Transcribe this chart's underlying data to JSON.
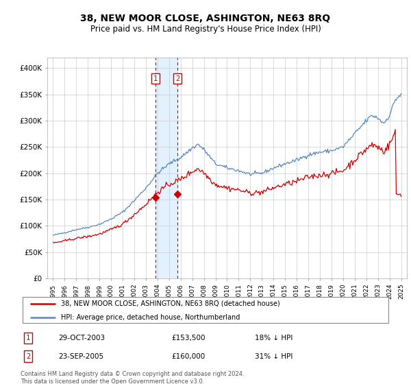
{
  "title": "38, NEW MOOR CLOSE, ASHINGTON, NE63 8RQ",
  "subtitle": "Price paid vs. HM Land Registry's House Price Index (HPI)",
  "legend_label_red": "38, NEW MOOR CLOSE, ASHINGTON, NE63 8RQ (detached house)",
  "legend_label_blue": "HPI: Average price, detached house, Northumberland",
  "transaction1_label": "1",
  "transaction1_date": "29-OCT-2003",
  "transaction1_price": "£153,500",
  "transaction1_hpi": "18% ↓ HPI",
  "transaction1_year": 2003.83,
  "transaction1_value": 153500,
  "transaction2_label": "2",
  "transaction2_date": "23-SEP-2005",
  "transaction2_price": "£160,000",
  "transaction2_hpi": "31% ↓ HPI",
  "transaction2_year": 2005.72,
  "transaction2_value": 160000,
  "footer": "Contains HM Land Registry data © Crown copyright and database right 2024.\nThis data is licensed under the Open Government Licence v3.0.",
  "ylim": [
    0,
    420000
  ],
  "yticks": [
    0,
    50000,
    100000,
    150000,
    200000,
    250000,
    300000,
    350000,
    400000
  ],
  "ytick_labels": [
    "£0",
    "£50K",
    "£100K",
    "£150K",
    "£200K",
    "£250K",
    "£300K",
    "£350K",
    "£400K"
  ],
  "background_color": "#ffffff",
  "grid_color": "#cccccc",
  "red_color": "#cc0000",
  "blue_color": "#5588bb",
  "shade_color": "#ddeeff",
  "marker_color": "#cc0000",
  "xlim_start": 1994.5,
  "xlim_end": 2025.5
}
